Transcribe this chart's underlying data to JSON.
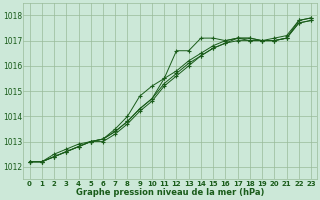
{
  "bg_color": "#cce8d8",
  "grid_color": "#99bb99",
  "line_color": "#1a5c1a",
  "title": "Graphe pression niveau de la mer (hPa)",
  "ylim": [
    1011.5,
    1018.5
  ],
  "xlim": [
    -0.5,
    23.5
  ],
  "yticks": [
    1012,
    1013,
    1014,
    1015,
    1016,
    1017,
    1018
  ],
  "xticks": [
    0,
    1,
    2,
    3,
    4,
    5,
    6,
    7,
    8,
    9,
    10,
    11,
    12,
    13,
    14,
    15,
    16,
    17,
    18,
    19,
    20,
    21,
    22,
    23
  ],
  "series": [
    [
      1012.2,
      1012.2,
      1012.5,
      1012.7,
      1012.9,
      1013.0,
      1013.1,
      1013.5,
      1014.0,
      1014.8,
      1015.2,
      1015.5,
      1016.6,
      1016.6,
      1017.1,
      1017.1,
      1017.0,
      1017.1,
      1017.1,
      1017.0,
      1017.1,
      1017.2,
      1017.8,
      1017.9
    ],
    [
      1012.2,
      1012.2,
      1012.4,
      1012.6,
      1012.8,
      1013.0,
      1013.1,
      1013.4,
      1013.8,
      1014.3,
      1014.7,
      1015.5,
      1015.8,
      1016.2,
      1016.5,
      1016.8,
      1017.0,
      1017.1,
      1017.1,
      1017.0,
      1017.0,
      1017.1,
      1017.8,
      1017.9
    ],
    [
      1012.2,
      1012.2,
      1012.4,
      1012.6,
      1012.8,
      1013.0,
      1013.1,
      1013.4,
      1013.8,
      1014.3,
      1014.7,
      1015.3,
      1015.7,
      1016.1,
      1016.4,
      1016.7,
      1016.9,
      1017.1,
      1017.0,
      1017.0,
      1017.0,
      1017.1,
      1017.7,
      1017.8
    ],
    [
      1012.2,
      1012.2,
      1012.4,
      1012.6,
      1012.8,
      1013.0,
      1013.0,
      1013.3,
      1013.7,
      1014.2,
      1014.6,
      1015.2,
      1015.6,
      1016.0,
      1016.4,
      1016.7,
      1016.9,
      1017.0,
      1017.0,
      1017.0,
      1017.0,
      1017.1,
      1017.7,
      1017.8
    ]
  ]
}
